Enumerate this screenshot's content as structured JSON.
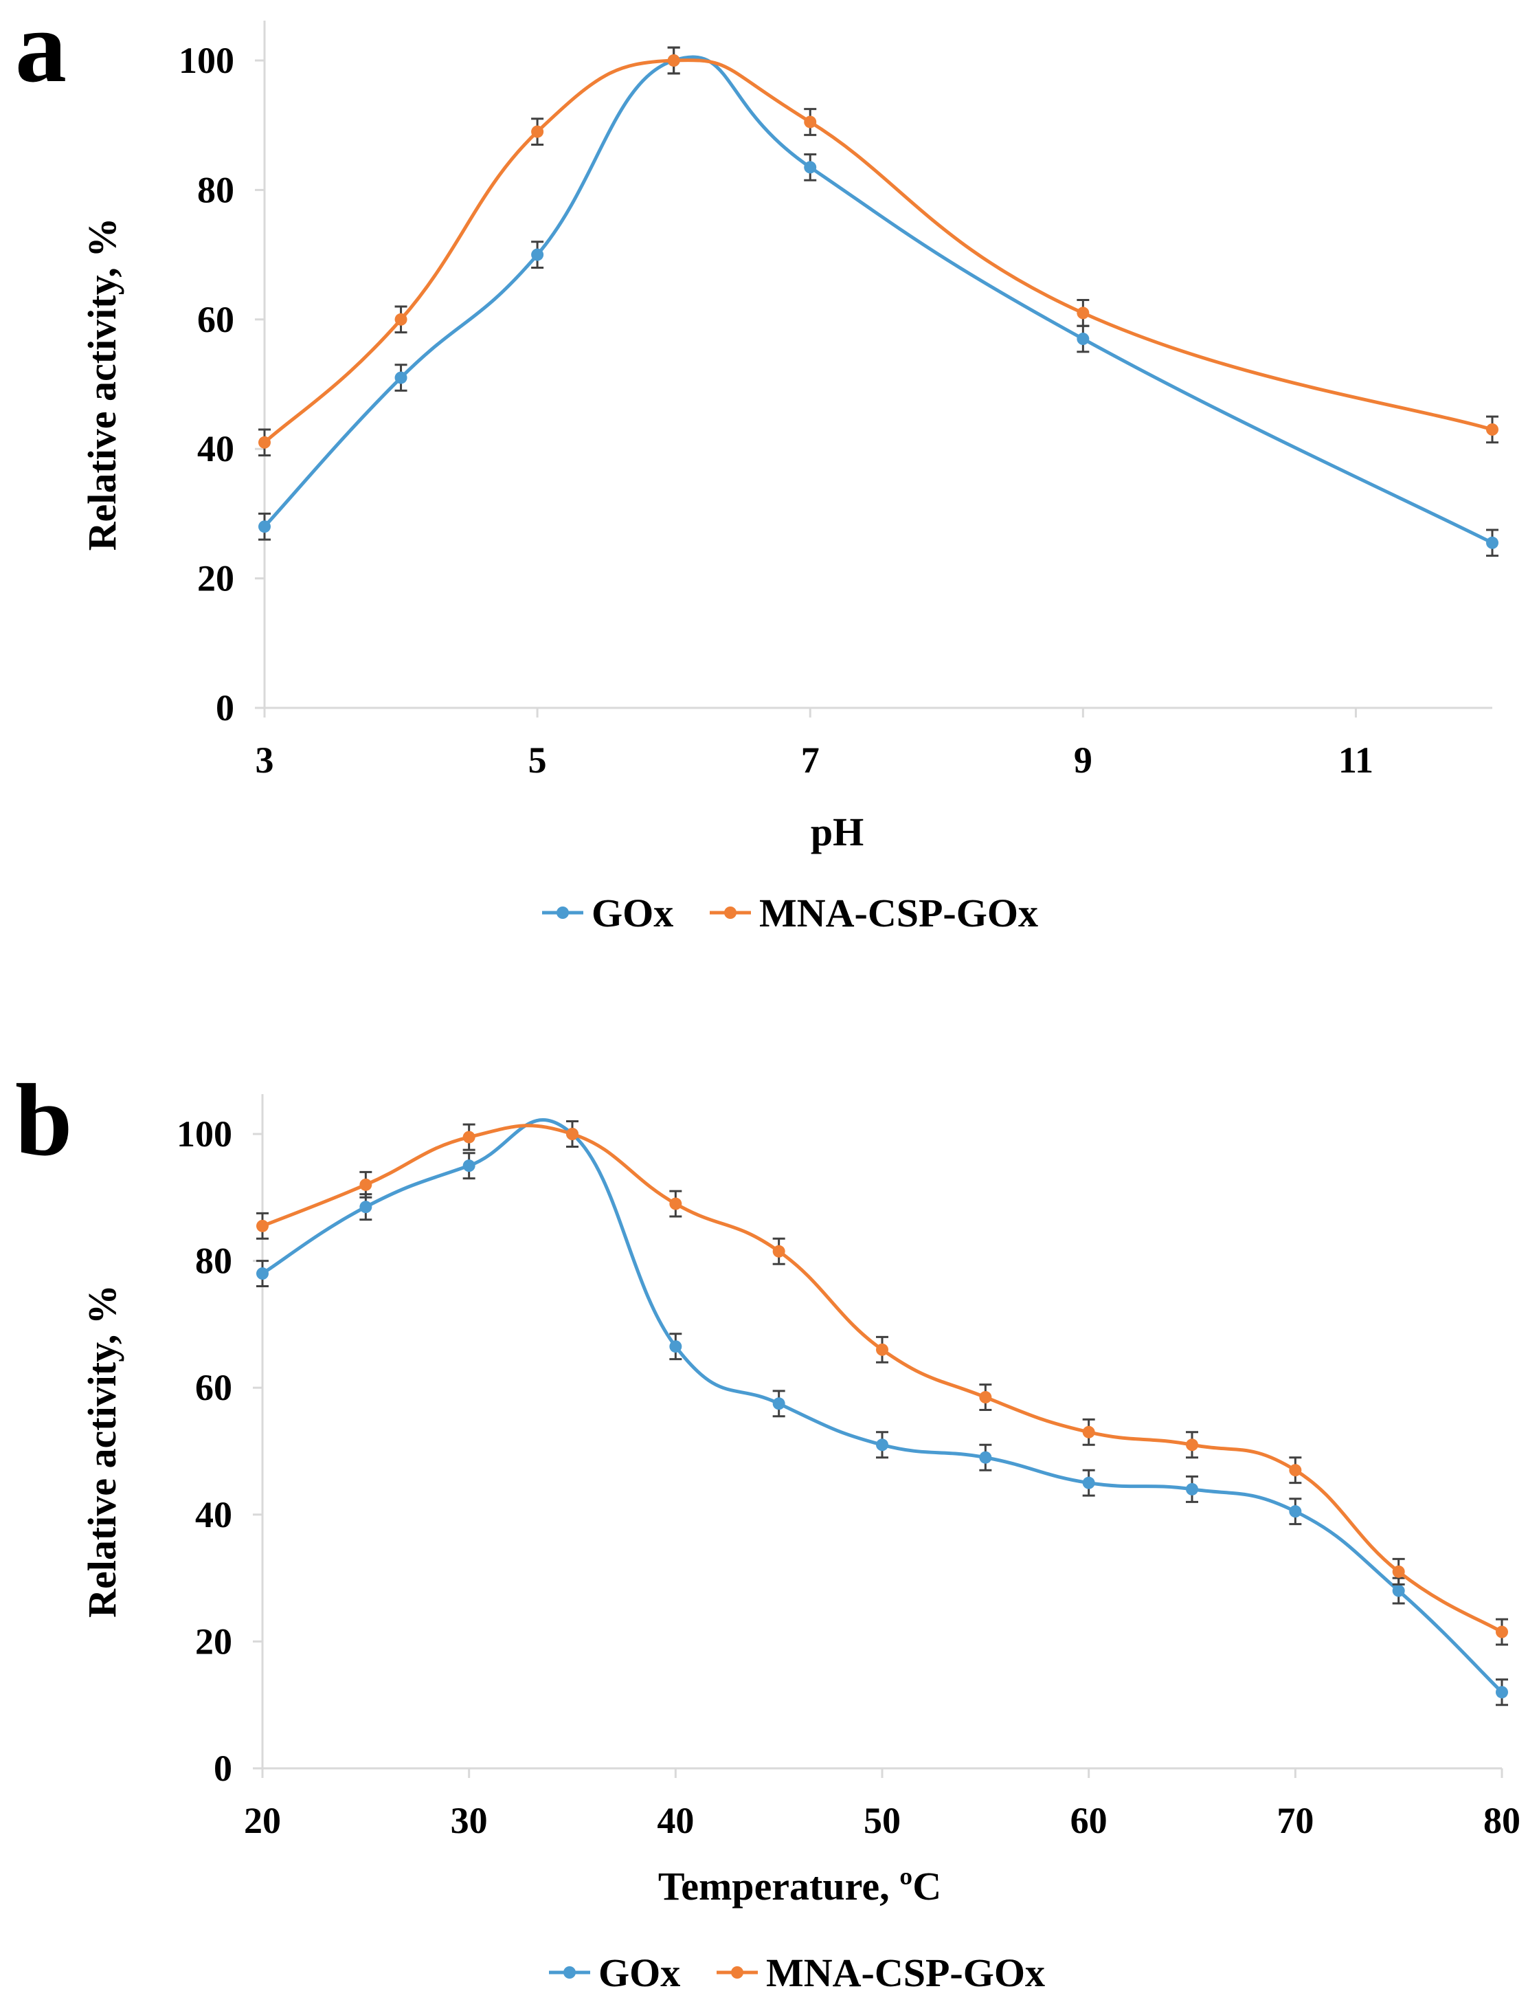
{
  "chart_data": [
    {
      "type": "line",
      "panel_label": "a",
      "xlabel": "pH",
      "ylabel": "Relative activity, %",
      "xlim": [
        3,
        12
      ],
      "ylim": [
        0,
        100
      ],
      "x_ticks": [
        3,
        5,
        7,
        9,
        11
      ],
      "y_ticks": [
        0,
        20,
        40,
        60,
        80,
        100
      ],
      "grid": false,
      "legend_position": "bottom",
      "error_bars": 2,
      "series": [
        {
          "name": "GOx",
          "color": "#4a9bd1",
          "x": [
            3,
            4,
            5,
            6,
            7,
            9,
            12
          ],
          "y": [
            28,
            51,
            70,
            100,
            83.5,
            57,
            25.5
          ]
        },
        {
          "name": "MNA-CSP-GOx",
          "color": "#f07f35",
          "x": [
            3,
            4,
            5,
            6,
            7,
            9,
            12
          ],
          "y": [
            41,
            60,
            89,
            100,
            90.5,
            61,
            43
          ]
        }
      ]
    },
    {
      "type": "line",
      "panel_label": "b",
      "xlabel": "Temperature, ºC",
      "ylabel": "Relative activity, %",
      "xlim": [
        20,
        80
      ],
      "ylim": [
        0,
        100
      ],
      "x_ticks": [
        20,
        30,
        40,
        50,
        60,
        70,
        80
      ],
      "y_ticks": [
        0,
        20,
        40,
        60,
        80,
        100
      ],
      "grid": false,
      "legend_position": "bottom",
      "error_bars": 2,
      "series": [
        {
          "name": "GOx",
          "color": "#4a9bd1",
          "x": [
            20,
            25,
            30,
            35,
            40,
            45,
            50,
            55,
            60,
            65,
            70,
            75,
            80
          ],
          "y": [
            78,
            88.5,
            95,
            100,
            66.5,
            57.5,
            51,
            49,
            45,
            44,
            40.5,
            28,
            12
          ]
        },
        {
          "name": "MNA-CSP-GOx",
          "color": "#f07f35",
          "x": [
            20,
            25,
            30,
            35,
            40,
            45,
            50,
            55,
            60,
            65,
            70,
            75,
            80
          ],
          "y": [
            85.5,
            92,
            99.5,
            100,
            89,
            81.5,
            66,
            58.5,
            53,
            51,
            47,
            31,
            21.5
          ]
        }
      ]
    }
  ]
}
